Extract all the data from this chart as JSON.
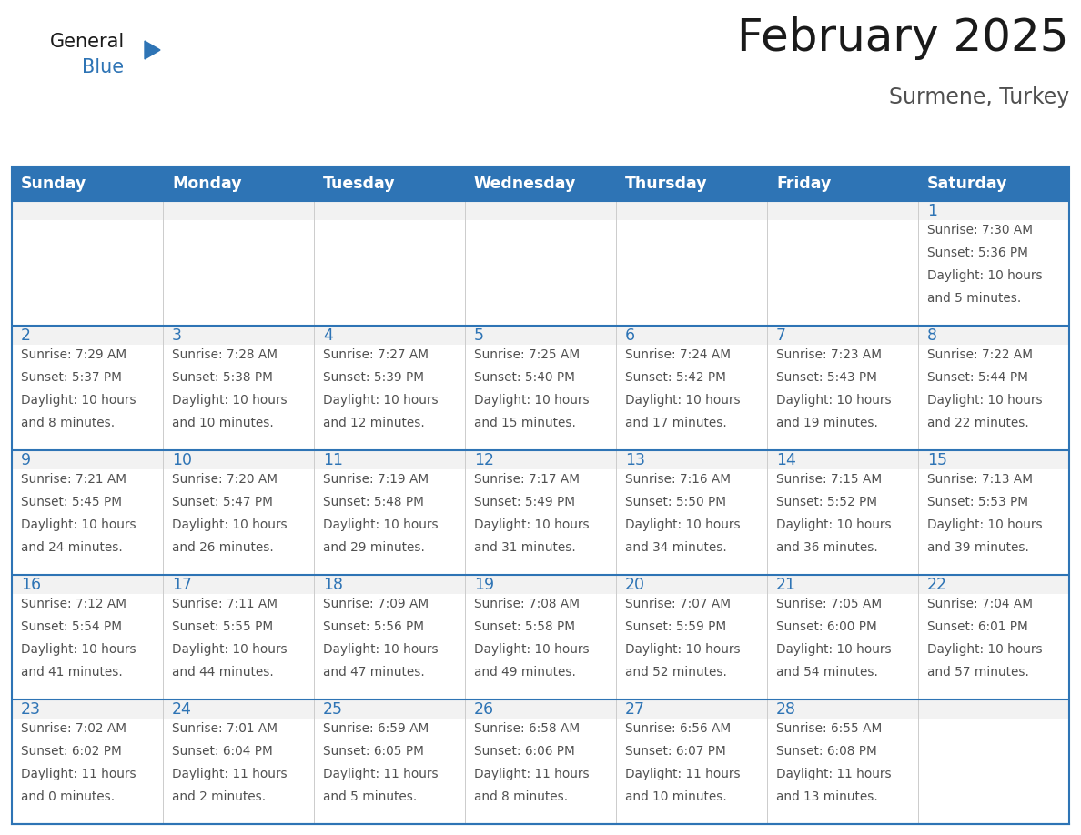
{
  "title": "February 2025",
  "subtitle": "Surmene, Turkey",
  "days_of_week": [
    "Sunday",
    "Monday",
    "Tuesday",
    "Wednesday",
    "Thursday",
    "Friday",
    "Saturday"
  ],
  "header_bg_color": "#2E74B5",
  "header_text_color": "#FFFFFF",
  "cell_bg_color": "#FFFFFF",
  "row_bg_even": "#F2F2F2",
  "border_color": "#2E74B5",
  "day_num_color": "#2E74B5",
  "cell_text_color": "#505050",
  "title_color": "#1A1A1A",
  "subtitle_color": "#505050",
  "logo_general_color": "#1A1A1A",
  "logo_blue_color": "#2E74B5",
  "calendar_data": [
    [
      null,
      null,
      null,
      null,
      null,
      null,
      {
        "day": 1,
        "sunrise": "7:30 AM",
        "sunset": "5:36 PM",
        "daylight": "10 hours and 5 minutes."
      }
    ],
    [
      {
        "day": 2,
        "sunrise": "7:29 AM",
        "sunset": "5:37 PM",
        "daylight": "10 hours and 8 minutes."
      },
      {
        "day": 3,
        "sunrise": "7:28 AM",
        "sunset": "5:38 PM",
        "daylight": "10 hours and 10 minutes."
      },
      {
        "day": 4,
        "sunrise": "7:27 AM",
        "sunset": "5:39 PM",
        "daylight": "10 hours and 12 minutes."
      },
      {
        "day": 5,
        "sunrise": "7:25 AM",
        "sunset": "5:40 PM",
        "daylight": "10 hours and 15 minutes."
      },
      {
        "day": 6,
        "sunrise": "7:24 AM",
        "sunset": "5:42 PM",
        "daylight": "10 hours and 17 minutes."
      },
      {
        "day": 7,
        "sunrise": "7:23 AM",
        "sunset": "5:43 PM",
        "daylight": "10 hours and 19 minutes."
      },
      {
        "day": 8,
        "sunrise": "7:22 AM",
        "sunset": "5:44 PM",
        "daylight": "10 hours and 22 minutes."
      }
    ],
    [
      {
        "day": 9,
        "sunrise": "7:21 AM",
        "sunset": "5:45 PM",
        "daylight": "10 hours and 24 minutes."
      },
      {
        "day": 10,
        "sunrise": "7:20 AM",
        "sunset": "5:47 PM",
        "daylight": "10 hours and 26 minutes."
      },
      {
        "day": 11,
        "sunrise": "7:19 AM",
        "sunset": "5:48 PM",
        "daylight": "10 hours and 29 minutes."
      },
      {
        "day": 12,
        "sunrise": "7:17 AM",
        "sunset": "5:49 PM",
        "daylight": "10 hours and 31 minutes."
      },
      {
        "day": 13,
        "sunrise": "7:16 AM",
        "sunset": "5:50 PM",
        "daylight": "10 hours and 34 minutes."
      },
      {
        "day": 14,
        "sunrise": "7:15 AM",
        "sunset": "5:52 PM",
        "daylight": "10 hours and 36 minutes."
      },
      {
        "day": 15,
        "sunrise": "7:13 AM",
        "sunset": "5:53 PM",
        "daylight": "10 hours and 39 minutes."
      }
    ],
    [
      {
        "day": 16,
        "sunrise": "7:12 AM",
        "sunset": "5:54 PM",
        "daylight": "10 hours and 41 minutes."
      },
      {
        "day": 17,
        "sunrise": "7:11 AM",
        "sunset": "5:55 PM",
        "daylight": "10 hours and 44 minutes."
      },
      {
        "day": 18,
        "sunrise": "7:09 AM",
        "sunset": "5:56 PM",
        "daylight": "10 hours and 47 minutes."
      },
      {
        "day": 19,
        "sunrise": "7:08 AM",
        "sunset": "5:58 PM",
        "daylight": "10 hours and 49 minutes."
      },
      {
        "day": 20,
        "sunrise": "7:07 AM",
        "sunset": "5:59 PM",
        "daylight": "10 hours and 52 minutes."
      },
      {
        "day": 21,
        "sunrise": "7:05 AM",
        "sunset": "6:00 PM",
        "daylight": "10 hours and 54 minutes."
      },
      {
        "day": 22,
        "sunrise": "7:04 AM",
        "sunset": "6:01 PM",
        "daylight": "10 hours and 57 minutes."
      }
    ],
    [
      {
        "day": 23,
        "sunrise": "7:02 AM",
        "sunset": "6:02 PM",
        "daylight": "11 hours and 0 minutes."
      },
      {
        "day": 24,
        "sunrise": "7:01 AM",
        "sunset": "6:04 PM",
        "daylight": "11 hours and 2 minutes."
      },
      {
        "day": 25,
        "sunrise": "6:59 AM",
        "sunset": "6:05 PM",
        "daylight": "11 hours and 5 minutes."
      },
      {
        "day": 26,
        "sunrise": "6:58 AM",
        "sunset": "6:06 PM",
        "daylight": "11 hours and 8 minutes."
      },
      {
        "day": 27,
        "sunrise": "6:56 AM",
        "sunset": "6:07 PM",
        "daylight": "11 hours and 10 minutes."
      },
      {
        "day": 28,
        "sunrise": "6:55 AM",
        "sunset": "6:08 PM",
        "daylight": "11 hours and 13 minutes."
      },
      null
    ]
  ]
}
